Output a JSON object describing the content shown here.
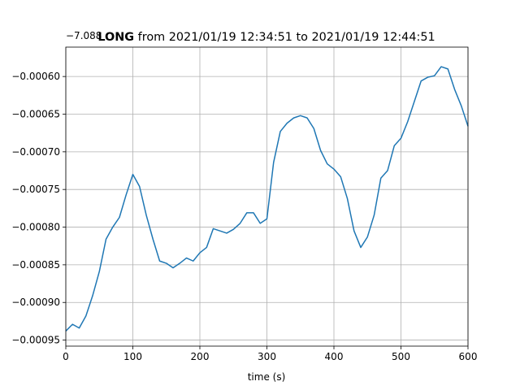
{
  "chart_data": {
    "type": "line",
    "title_bold": "LONG",
    "title": " from 2021/01/19 12:34:51 to 2021/01/19 12:44:51",
    "offset_text": "−7.088",
    "xlabel": "time (s)",
    "x": [
      0,
      10,
      20,
      30,
      40,
      50,
      60,
      70,
      80,
      90,
      100,
      110,
      120,
      130,
      140,
      150,
      160,
      170,
      180,
      190,
      200,
      210,
      220,
      230,
      240,
      250,
      260,
      270,
      280,
      290,
      300,
      310,
      320,
      330,
      340,
      350,
      360,
      370,
      380,
      390,
      400,
      410,
      420,
      430,
      440,
      450,
      460,
      470,
      480,
      490,
      500,
      510,
      520,
      530,
      540,
      550,
      560,
      570,
      580,
      590,
      600
    ],
    "series": [
      {
        "name": "LONG",
        "color": "#1f77b4",
        "values": [
          -0.000938,
          -0.000929,
          -0.000934,
          -0.000918,
          -0.000891,
          -0.000859,
          -0.000816,
          -0.0008,
          -0.000787,
          -0.000757,
          -0.00073,
          -0.000746,
          -0.000784,
          -0.000816,
          -0.000845,
          -0.000848,
          -0.000854,
          -0.000848,
          -0.000841,
          -0.000845,
          -0.000834,
          -0.000827,
          -0.000802,
          -0.000805,
          -0.000808,
          -0.000803,
          -0.000795,
          -0.000781,
          -0.000781,
          -0.000795,
          -0.000789,
          -0.000714,
          -0.000673,
          -0.000662,
          -0.000655,
          -0.000652,
          -0.000655,
          -0.000669,
          -0.000698,
          -0.000716,
          -0.000723,
          -0.000733,
          -0.000762,
          -0.000805,
          -0.000827,
          -0.000813,
          -0.000784,
          -0.000735,
          -0.000725,
          -0.000692,
          -0.000682,
          -0.00066,
          -0.000633,
          -0.000606,
          -0.000601,
          -0.000599,
          -0.000587,
          -0.00059,
          -0.000617,
          -0.000639,
          -0.000666
        ]
      }
    ],
    "xlim": [
      0,
      600
    ],
    "xticks": [
      0,
      100,
      200,
      300,
      400,
      500,
      600
    ],
    "ylim": [
      -0.000958,
      -0.000561
    ],
    "yticks": [
      {
        "value": -0.00095,
        "label": "−0.00095"
      },
      {
        "value": -0.0009,
        "label": "−0.00090"
      },
      {
        "value": -0.00085,
        "label": "−0.00085"
      },
      {
        "value": -0.0008,
        "label": "−0.00080"
      },
      {
        "value": -0.00075,
        "label": "−0.00075"
      },
      {
        "value": -0.0007,
        "label": "−0.00070"
      },
      {
        "value": -0.00065,
        "label": "−0.00065"
      },
      {
        "value": -0.0006,
        "label": "−0.00060"
      }
    ],
    "grid": true
  }
}
